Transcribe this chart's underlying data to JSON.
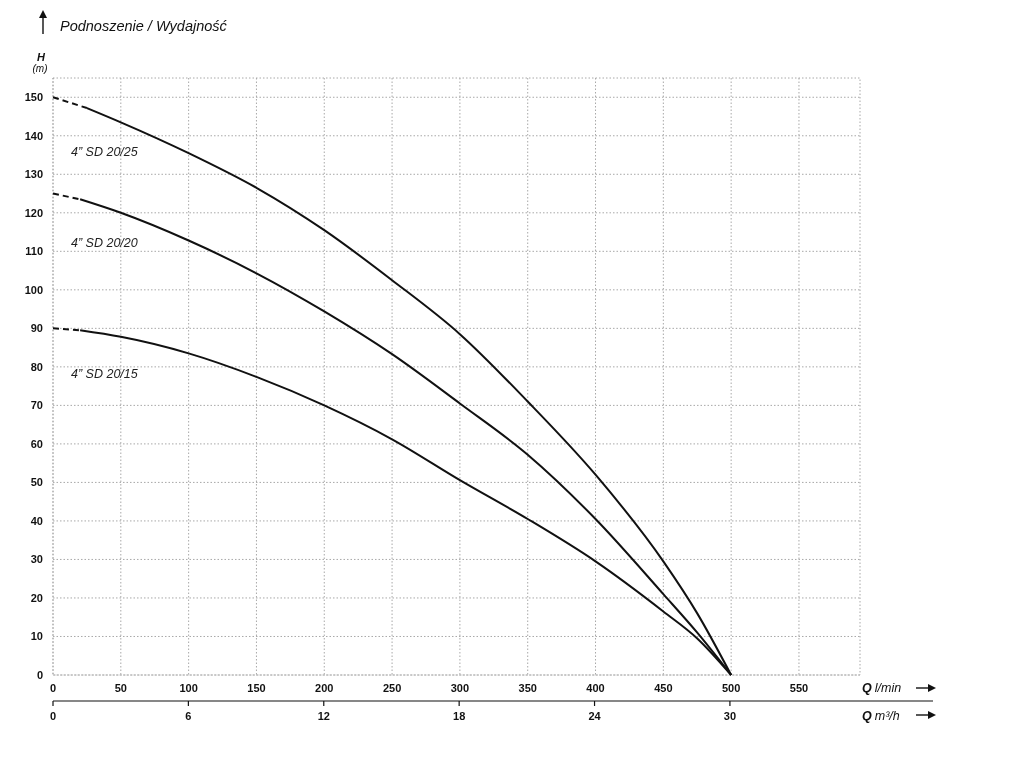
{
  "chart_data": {
    "type": "line",
    "title": "Podnoszenie / Wydajność",
    "ylabel": "H (m)",
    "xlabel": "Q l/min",
    "x2label": "Q m³/h",
    "xlim": [
      0,
      595
    ],
    "xticks": [
      0,
      50,
      100,
      150,
      200,
      250,
      300,
      350,
      400,
      450,
      500,
      550
    ],
    "x2lim": [
      0,
      39
    ],
    "x2ticks": [
      0,
      6,
      12,
      18,
      24,
      30
    ],
    "ylim": [
      0,
      155
    ],
    "yticks": [
      0,
      10,
      20,
      30,
      40,
      50,
      60,
      70,
      80,
      90,
      100,
      110,
      120,
      130,
      140,
      150
    ],
    "grid": true,
    "series": [
      {
        "name": "4” SD 20/25",
        "color": "#111111",
        "x": [
          25,
          50,
          100,
          150,
          200,
          250,
          300,
          350,
          400,
          450,
          475,
          500
        ],
        "values": [
          147.2,
          143.5,
          135.5,
          126.5,
          115.5,
          102.5,
          88.5,
          71,
          52,
          29.5,
          16,
          0
        ]
      },
      {
        "name": "4” SD 20/20",
        "color": "#111111",
        "x": [
          20,
          50,
          100,
          150,
          200,
          250,
          300,
          350,
          400,
          450,
          475,
          500
        ],
        "values": [
          123.5,
          120,
          112.8,
          104.3,
          94.4,
          83.3,
          70.5,
          57.2,
          40.5,
          21,
          11,
          0
        ]
      },
      {
        "name": "4” SD 20/15",
        "color": "#111111",
        "x": [
          20,
          50,
          100,
          150,
          200,
          250,
          300,
          350,
          400,
          450,
          475,
          500
        ],
        "values": [
          89.5,
          87.8,
          83.5,
          77.4,
          70,
          61.2,
          50.6,
          40.5,
          29.5,
          16.5,
          9.5,
          0
        ]
      },
      {
        "color": "#111111",
        "line_style": "dashed",
        "x": [
          0,
          25
        ],
        "values": [
          150,
          147.2
        ]
      },
      {
        "color": "#111111",
        "line_style": "dashed",
        "x": [
          0,
          20
        ],
        "values": [
          125,
          123.5
        ]
      },
      {
        "color": "#111111",
        "line_style": "dashed",
        "x": [
          0,
          20
        ],
        "values": [
          90,
          89.5
        ]
      }
    ]
  }
}
